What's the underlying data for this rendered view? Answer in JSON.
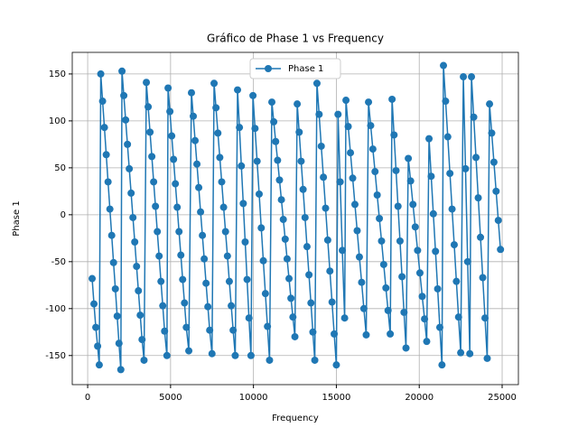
{
  "chart_data": {
    "type": "line",
    "title": "Gráfico de Phase 1 vs Frequency",
    "x_label": "Frequency",
    "y_label": "Phase 1",
    "x": [
      270,
      380,
      490,
      600,
      700,
      790,
      900,
      1010,
      1120,
      1230,
      1340,
      1450,
      1560,
      1670,
      1780,
      1890,
      2000,
      2070,
      2180,
      2290,
      2400,
      2510,
      2620,
      2730,
      2840,
      2950,
      3060,
      3170,
      3280,
      3400,
      3540,
      3650,
      3760,
      3870,
      3980,
      4090,
      4200,
      4310,
      4420,
      4530,
      4640,
      4780,
      4850,
      4960,
      5070,
      5180,
      5290,
      5400,
      5510,
      5620,
      5730,
      5840,
      5950,
      6100,
      6260,
      6370,
      6480,
      6590,
      6700,
      6810,
      6920,
      7030,
      7140,
      7250,
      7360,
      7500,
      7625,
      7740,
      7855,
      7970,
      8085,
      8200,
      8315,
      8430,
      8545,
      8660,
      8775,
      8900,
      9040,
      9155,
      9270,
      9385,
      9500,
      9615,
      9730,
      9850,
      9970,
      10095,
      10220,
      10345,
      10470,
      10595,
      10720,
      10845,
      10970,
      11110,
      11225,
      11340,
      11455,
      11570,
      11685,
      11800,
      11915,
      12030,
      12145,
      12260,
      12380,
      12500,
      12640,
      12758,
      12876,
      12994,
      13112,
      13230,
      13348,
      13466,
      13584,
      13700,
      13830,
      13960,
      14090,
      14220,
      14350,
      14480,
      14610,
      14740,
      14870,
      15000,
      15100,
      15230,
      15360,
      15500,
      15580,
      15715,
      15850,
      15985,
      16120,
      16255,
      16390,
      16525,
      16660,
      16800,
      16940,
      17071,
      17202,
      17333,
      17464,
      17595,
      17726,
      17857,
      17988,
      18119,
      18250,
      18360,
      18480,
      18600,
      18720,
      18840,
      18960,
      19080,
      19200,
      19340,
      19480,
      19620,
      19760,
      19900,
      20040,
      20180,
      20320,
      20450,
      20590,
      20720,
      20850,
      20980,
      21110,
      21240,
      21370,
      21460,
      21590,
      21720,
      21850,
      21980,
      22110,
      22240,
      22370,
      22500,
      22660,
      22790,
      22920,
      23050,
      23150,
      23286,
      23422,
      23558,
      23694,
      23830,
      23966,
      24100,
      24240,
      24372,
      24504,
      24636,
      24768,
      24900
    ],
    "series": [
      {
        "name": "Phase 1",
        "color": "#1f77b4",
        "values": [
          -68,
          -95,
          -120,
          -140,
          -160,
          150,
          121,
          93,
          64,
          35,
          6,
          -22,
          -51,
          -79,
          -108,
          -137,
          -165,
          153,
          127,
          101,
          75,
          49,
          23,
          -3,
          -29,
          -55,
          -81,
          -107,
          -133,
          -155,
          141,
          115,
          88,
          62,
          35,
          9,
          -18,
          -44,
          -71,
          -97,
          -124,
          -150,
          135,
          110,
          84,
          59,
          33,
          8,
          -18,
          -43,
          -69,
          -94,
          -120,
          -145,
          130,
          105,
          79,
          54,
          29,
          3,
          -22,
          -47,
          -73,
          -98,
          -123,
          -148,
          140,
          114,
          87,
          61,
          35,
          8,
          -18,
          -44,
          -71,
          -97,
          -123,
          -150,
          133,
          93,
          52,
          12,
          -29,
          -69,
          -110,
          -150,
          127,
          92,
          57,
          22,
          -14,
          -49,
          -84,
          -119,
          -155,
          120,
          99,
          78,
          58,
          37,
          16,
          -5,
          -26,
          -47,
          -68,
          -89,
          -109,
          -130,
          118,
          88,
          57,
          27,
          -3,
          -34,
          -64,
          -94,
          -125,
          -155,
          140,
          107,
          73,
          40,
          7,
          -27,
          -60,
          -93,
          -127,
          -160,
          107,
          35,
          -38,
          -110,
          122,
          94,
          66,
          39,
          11,
          -17,
          -45,
          -72,
          -100,
          -128,
          120,
          95,
          70,
          46,
          21,
          -4,
          -28,
          -53,
          -78,
          -102,
          -127,
          123,
          85,
          47,
          9,
          -28,
          -66,
          -104,
          -142,
          60,
          36,
          11,
          -13,
          -38,
          -62,
          -87,
          -111,
          -135,
          81,
          41,
          1,
          -39,
          -79,
          -120,
          -160,
          159,
          121,
          83,
          44,
          6,
          -32,
          -71,
          -109,
          -147,
          147,
          49,
          -50,
          -148,
          147,
          104,
          61,
          18,
          -24,
          -67,
          -110,
          -153,
          118,
          87,
          56,
          25,
          -6,
          -37
        ]
      }
    ],
    "xlim": [
      -930,
      25980
    ],
    "ylim": [
      -181,
      173
    ],
    "xticks": [
      0,
      5000,
      10000,
      15000,
      20000,
      25000
    ],
    "yticks": [
      -150,
      -100,
      -50,
      0,
      50,
      100,
      150
    ],
    "grid": true,
    "legend": "upper center"
  }
}
